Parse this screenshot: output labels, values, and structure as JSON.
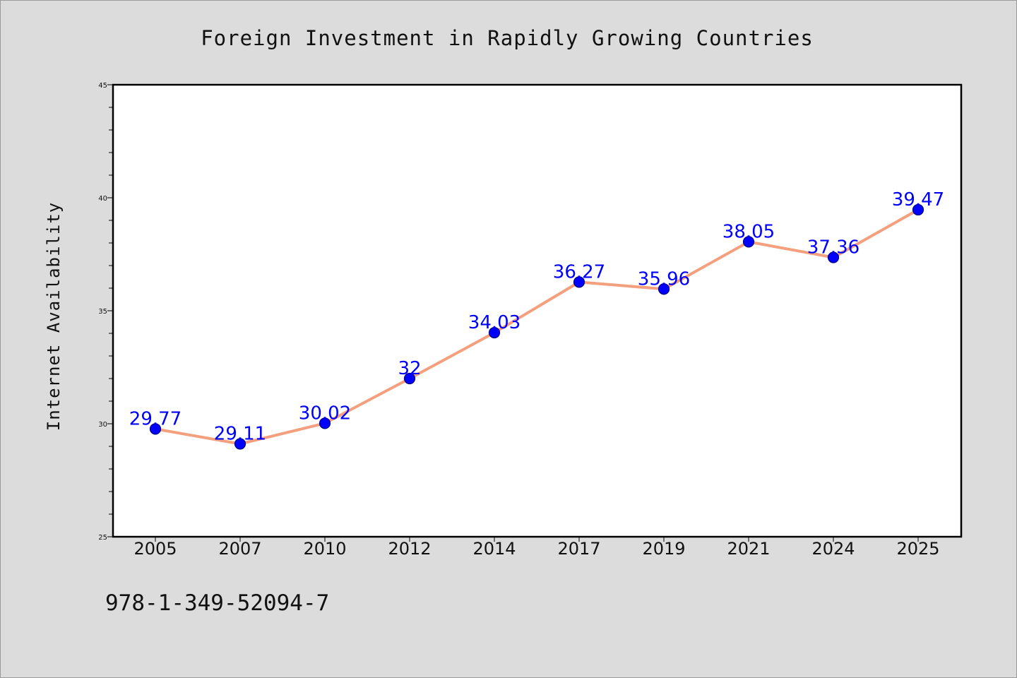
{
  "chart_data": {
    "type": "line",
    "title": "Foreign Investment in Rapidly Growing Countries",
    "xlabel": "",
    "ylabel": "Internet Availability",
    "categories": [
      "2005",
      "2007",
      "2010",
      "2012",
      "2014",
      "2017",
      "2019",
      "2021",
      "2024",
      "2025"
    ],
    "series": [
      {
        "values": [
          29.77,
          29.11,
          30.02,
          32,
          34.03,
          36.27,
          35.96,
          38.05,
          37.36,
          39.47
        ],
        "labels": [
          "29.77",
          "29.11",
          "30.02",
          "32",
          "34.03",
          "36.27",
          "35.96",
          "38.05",
          "37.36",
          "39.47"
        ]
      }
    ],
    "ylim": [
      25,
      45
    ],
    "yticks": [
      "25",
      "30",
      "35",
      "40",
      "45"
    ],
    "grid": false,
    "legend": "none",
    "colors": {
      "line": "#f4a07e",
      "marker": "#0000ff",
      "marker_edge": "#000080",
      "data_label": "#0000ff",
      "plot_bg": "#ffffff",
      "figure_bg": "#dcdcdc"
    }
  },
  "footer": {
    "isbn": "978-1-349-52094-7"
  }
}
